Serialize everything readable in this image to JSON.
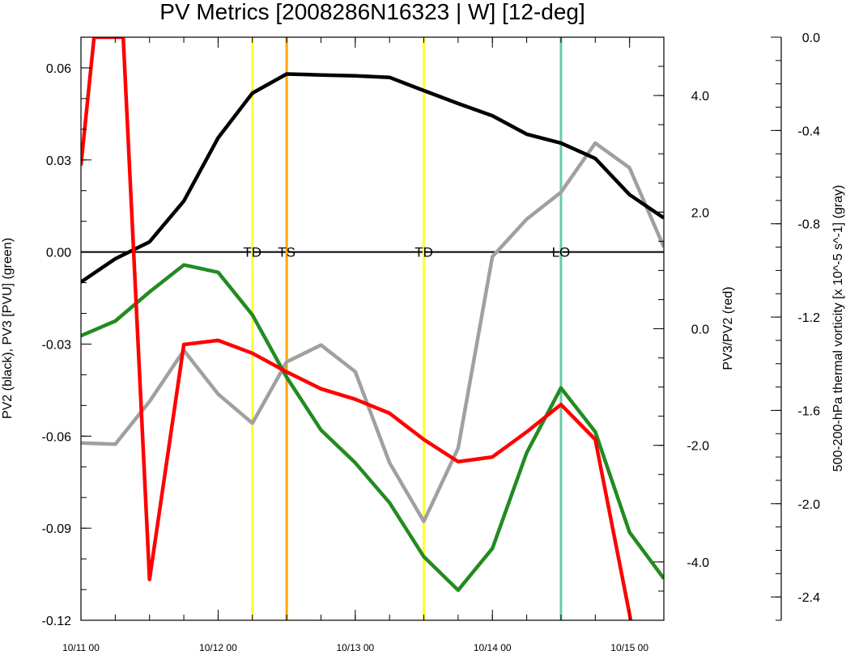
{
  "chart_data": {
    "type": "line",
    "title": "PV Metrics [2008286N16323 | W] [12-deg]",
    "xlabel": "",
    "x_ticks": [
      "10/11 00",
      "10/12 00",
      "10/13 00",
      "10/14 00",
      "10/15 00"
    ],
    "x_range_hours": [
      0,
      102
    ],
    "left_axis": {
      "label": "PV2 (black), PV3 [PVU] (green)",
      "range": [
        -0.12,
        0.07
      ],
      "ticks": [
        "0.06",
        "0.03",
        "0.00",
        "-0.03",
        "-0.06",
        "-0.09",
        "-0.12"
      ],
      "tick_values": [
        0.06,
        0.03,
        0.0,
        -0.03,
        -0.06,
        -0.09,
        -0.12
      ]
    },
    "right_axis": {
      "label": "PV3/PV2 (red)",
      "range": [
        -5.0,
        5.0
      ],
      "ticks": [
        "4.0",
        "2.0",
        "0.0",
        "-2.0",
        "-4.0"
      ],
      "tick_values": [
        4.0,
        2.0,
        0.0,
        -2.0,
        -4.0
      ]
    },
    "far_right_axis": {
      "label": "500-200-hPa thermal vorticity [x 10^-5 s^-1] (gray)",
      "range": [
        -2.5,
        0.0
      ],
      "ticks": [
        "0.0",
        "-0.4",
        "-0.8",
        "-1.2",
        "-1.6",
        "-2.0",
        "-2.4"
      ],
      "tick_values": [
        0.0,
        -0.4,
        -0.8,
        -1.2,
        -1.6,
        -2.0,
        -2.4
      ]
    },
    "series": [
      {
        "color": "#000000",
        "axis": "left",
        "x": [
          0,
          6,
          12,
          18,
          24,
          30,
          36,
          42,
          48,
          54,
          60,
          66,
          72,
          78,
          84,
          90,
          96,
          102
        ],
        "y": [
          -0.0098,
          -0.0022,
          0.0033,
          0.0166,
          0.0372,
          0.0518,
          0.058,
          0.0577,
          0.0574,
          0.0569,
          0.0526,
          0.0484,
          0.0444,
          0.0384,
          0.0355,
          0.0305,
          0.0187,
          0.0111
        ]
      },
      {
        "color": "#228b22",
        "axis": "left",
        "x": [
          0,
          6,
          12,
          18,
          24,
          30,
          36,
          42,
          48,
          54,
          60,
          66,
          72,
          78,
          84,
          90,
          96,
          102
        ],
        "y": [
          -0.0273,
          -0.0225,
          -0.013,
          -0.0042,
          -0.0066,
          -0.0205,
          -0.0408,
          -0.058,
          -0.0687,
          -0.0817,
          -0.0993,
          -0.1102,
          -0.0966,
          -0.0654,
          -0.0443,
          -0.0586,
          -0.0913,
          -0.1064
        ]
      },
      {
        "color": "#ff0000",
        "axis": "right",
        "x": [
          0,
          2.3,
          7.4,
          12,
          18,
          24,
          30,
          36,
          42,
          48,
          54,
          60,
          66,
          72,
          78,
          84,
          90,
          96.2
        ],
        "y": [
          2.8,
          5.0,
          5.0,
          -4.3,
          -0.27,
          -0.2,
          -0.42,
          -0.74,
          -1.03,
          -1.21,
          -1.45,
          -1.9,
          -2.28,
          -2.2,
          -1.77,
          -1.3,
          -1.9,
          -5.0
        ]
      },
      {
        "color": "#a0a0a0",
        "axis": "far_right",
        "x": [
          0,
          6,
          12,
          18,
          24,
          30,
          36,
          42,
          48,
          54,
          60,
          66,
          72,
          78,
          84,
          90,
          96,
          102
        ],
        "y": [
          -1.74,
          -1.745,
          -1.562,
          -1.343,
          -1.53,
          -1.655,
          -1.392,
          -1.32,
          -1.434,
          -1.825,
          -2.076,
          -1.762,
          -0.941,
          -0.78,
          -0.665,
          -0.454,
          -0.56,
          -0.9
        ]
      }
    ],
    "vertical_lines": [
      {
        "x": 30,
        "color": "#ffff33",
        "label": "TD"
      },
      {
        "x": 36,
        "color": "#ffa500",
        "label": "TS"
      },
      {
        "x": 60,
        "color": "#ffff33",
        "label": "TD"
      },
      {
        "x": 84,
        "color": "#66cdaa",
        "label": "LO"
      }
    ],
    "zero_line": 0.0,
    "grid": false,
    "legend": "none"
  }
}
